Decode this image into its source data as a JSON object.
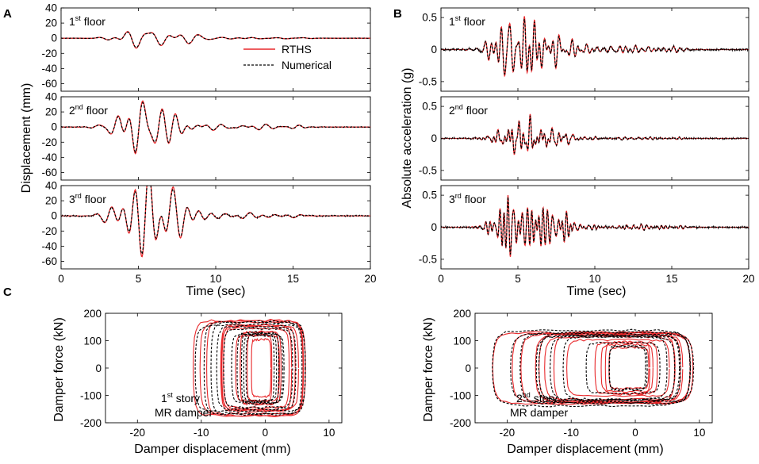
{
  "figure": {
    "panel_labels": [
      "A",
      "B",
      "C"
    ],
    "colors": {
      "rths": "#e8282b",
      "numerical": "#000000",
      "frame": "#000000"
    }
  },
  "chart_data": [
    {
      "id": "A",
      "type": "line",
      "description": "Floor displacement time histories",
      "xlabel": "Time (sec)",
      "ylabel": "Displacement (mm)",
      "xlim": [
        0,
        20
      ],
      "xticks": [
        "0",
        "5",
        "10",
        "15",
        "20"
      ],
      "ylim": [
        -70,
        40
      ],
      "yticks": [
        "40",
        "20",
        "0",
        "-20",
        "-40",
        "-60"
      ],
      "legend": {
        "position": "top-right",
        "entries": [
          "RTHS",
          "Numerical"
        ]
      },
      "subplots": [
        {
          "name": "1st floor",
          "label_base": "1",
          "label_sup": "st",
          "label_rest": "floor",
          "peak": 13,
          "seed": 11
        },
        {
          "name": "2nd floor",
          "label_base": "2",
          "label_sup": "nd",
          "label_rest": "floor",
          "peak": 35,
          "seed": 23
        },
        {
          "name": "3rd floor",
          "label_base": "3",
          "label_sup": "rd",
          "label_rest": "floor",
          "peak": 62,
          "seed": 37
        }
      ],
      "series": [
        {
          "name": "RTHS",
          "color": "#e8282b",
          "style": "solid"
        },
        {
          "name": "Numerical",
          "color": "#000000",
          "style": "dashed"
        }
      ]
    },
    {
      "id": "B",
      "type": "line",
      "description": "Floor absolute acceleration time histories",
      "xlabel": "Time (sec)",
      "ylabel": "Absolute acceleration (g)",
      "xlim": [
        0,
        20
      ],
      "xticks": [
        "0",
        "5",
        "10",
        "15",
        "20"
      ],
      "ylim": [
        -0.65,
        0.65
      ],
      "yticks": [
        "0.5",
        "0",
        "-0.5"
      ],
      "subplots": [
        {
          "name": "1st floor",
          "label_base": "1",
          "label_sup": "st",
          "label_rest": "floor",
          "peak": 0.52,
          "seed": 53
        },
        {
          "name": "2nd floor",
          "label_base": "2",
          "label_sup": "nd",
          "label_rest": "floor",
          "peak": 0.38,
          "seed": 71
        },
        {
          "name": "3rd floor",
          "label_base": "3",
          "label_sup": "rd",
          "label_rest": "floor",
          "peak": 0.5,
          "seed": 89
        }
      ],
      "series": [
        {
          "name": "RTHS",
          "color": "#e8282b",
          "style": "solid"
        },
        {
          "name": "Numerical",
          "color": "#000000",
          "style": "dashed"
        }
      ]
    },
    {
      "id": "C",
      "type": "scatter",
      "description": "Damper force vs damper displacement hysteresis",
      "xlabel": "Damper displacement (mm)",
      "ylabel": "Damper force (kN)",
      "ylim": [
        -200,
        200
      ],
      "yticks": [
        "200",
        "100",
        "0",
        "-100",
        "-200"
      ],
      "subplots": [
        {
          "name": "1st story MR damper",
          "label_base": "1",
          "label_sup": "st",
          "label_rest": "story",
          "label_line2": "MR damper",
          "xlim": [
            -25,
            12
          ],
          "xticks": [
            "-20",
            "-10",
            "0",
            "10"
          ],
          "disp_min": -11,
          "disp_max": 6,
          "force_max": 165,
          "seed": 101
        },
        {
          "name": "2nd story MR damper",
          "label_base": "2",
          "label_sup": "nd",
          "label_rest": "story",
          "label_line2": "MR damper",
          "xlim": [
            -25,
            12
          ],
          "xticks": [
            "-20",
            "-10",
            "0",
            "10"
          ],
          "disp_min": -22,
          "disp_max": 9,
          "force_max": 130,
          "seed": 131
        }
      ]
    }
  ]
}
